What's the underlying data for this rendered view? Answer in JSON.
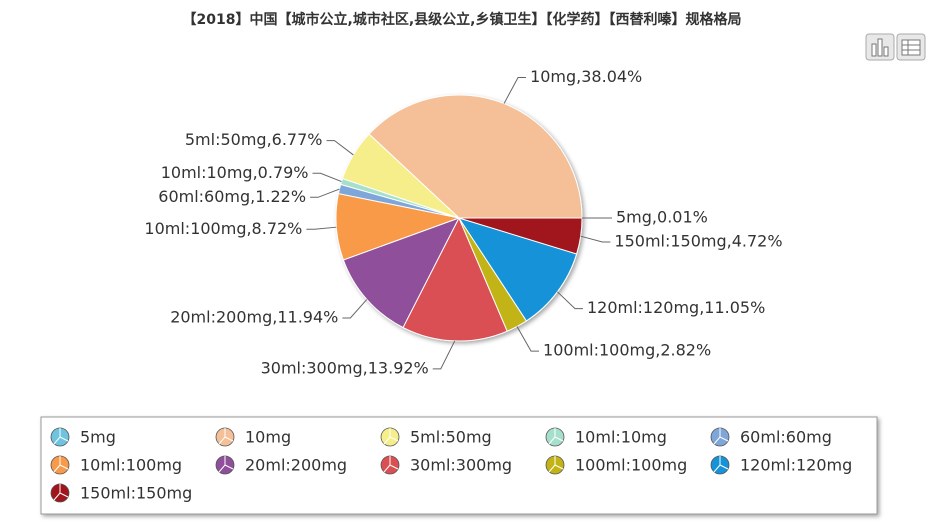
{
  "chart_data": {
    "type": "pie",
    "title": "【2018】中国【城市公立,城市社区,县级公立,乡镇卫生】【化学药】【西替利嗪】规格格局",
    "categories": [
      "5mg",
      "10mg",
      "5ml:50mg",
      "10ml:10mg",
      "60ml:60mg",
      "10ml:100mg",
      "20ml:200mg",
      "30ml:300mg",
      "100ml:100mg",
      "120ml:120mg",
      "150ml:150mg"
    ],
    "values": [
      0.01,
      38.04,
      6.77,
      0.79,
      1.22,
      8.72,
      11.94,
      13.92,
      2.82,
      11.05,
      4.72
    ],
    "value_labels": [
      "5mg,0.01%",
      "10mg,38.04%",
      "5ml:50mg,6.77%",
      "10ml:10mg,0.79%",
      "60ml:60mg,1.22%",
      "10ml:100mg,8.72%",
      "20ml:200mg,11.94%",
      "30ml:300mg,13.92%",
      "100ml:100mg,2.82%",
      "120ml:120mg,11.05%",
      "150ml:150mg,4.72%"
    ],
    "colors": [
      "#6ec3e0",
      "#f5bf97",
      "#f5ee8a",
      "#a6e0cc",
      "#7ea6d8",
      "#f99a4a",
      "#8f4f9a",
      "#d94f52",
      "#c2b416",
      "#1592d8",
      "#a0141c"
    ],
    "legend": "bottom"
  }
}
